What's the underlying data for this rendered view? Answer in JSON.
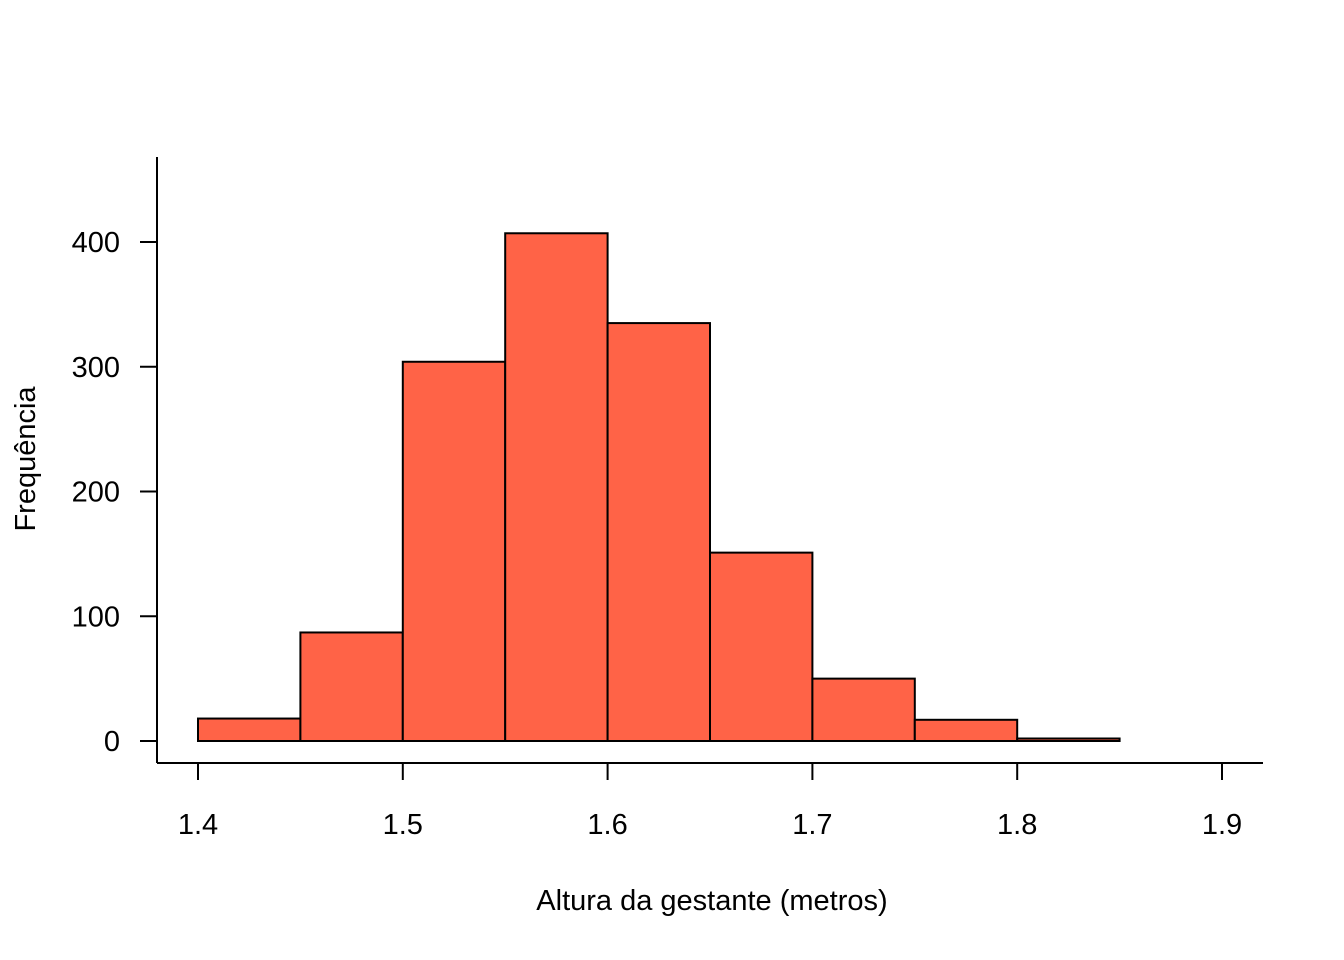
{
  "chart_data": {
    "type": "bar",
    "subtype": "histogram",
    "title": "",
    "xlabel": "Altura da gestante (metros)",
    "ylabel": "Frequência",
    "bins": [
      {
        "x0": 1.4,
        "x1": 1.45,
        "count": 18
      },
      {
        "x0": 1.45,
        "x1": 1.5,
        "count": 87
      },
      {
        "x0": 1.5,
        "x1": 1.55,
        "count": 304
      },
      {
        "x0": 1.55,
        "x1": 1.6,
        "count": 407
      },
      {
        "x0": 1.6,
        "x1": 1.65,
        "count": 335
      },
      {
        "x0": 1.65,
        "x1": 1.7,
        "count": 151
      },
      {
        "x0": 1.7,
        "x1": 1.75,
        "count": 50
      },
      {
        "x0": 1.75,
        "x1": 1.8,
        "count": 17
      },
      {
        "x0": 1.8,
        "x1": 1.85,
        "count": 2
      }
    ],
    "xlim": [
      1.4,
      1.9
    ],
    "ylim": [
      0,
      407
    ],
    "xticks": [
      1.4,
      1.5,
      1.6,
      1.7,
      1.8,
      1.9
    ],
    "xtick_labels": [
      "1.4",
      "1.5",
      "1.6",
      "1.7",
      "1.8",
      "1.9"
    ],
    "yticks": [
      0,
      100,
      200,
      300,
      400
    ],
    "ytick_labels": [
      "0",
      "100",
      "200",
      "300",
      "400"
    ],
    "grid": false,
    "bar_color": "#FF6347",
    "edge_color": "#000000"
  }
}
